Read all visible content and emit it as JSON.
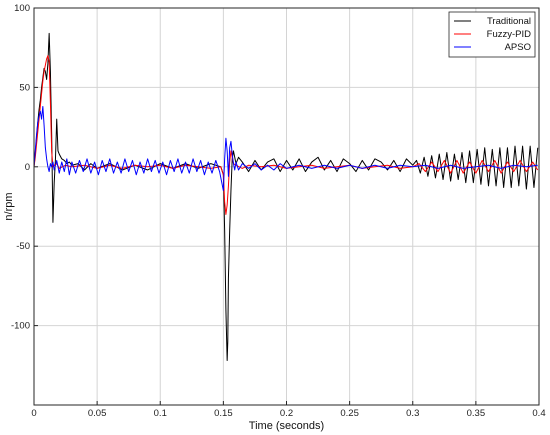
{
  "chart_data": {
    "type": "line",
    "title": "",
    "xlabel": "Time (seconds)",
    "ylabel": "n/rpm",
    "xlim": [
      0,
      0.4
    ],
    "ylim": [
      -150,
      100
    ],
    "xticks": [
      0,
      0.05,
      0.1,
      0.15,
      0.2,
      0.25,
      0.3,
      0.35,
      0.4
    ],
    "xtick_labels": [
      "0",
      "0.05",
      "0.1",
      "0.15",
      "0.2",
      "0.25",
      "0.3",
      "0.35",
      "0.4"
    ],
    "yticks": [
      -150,
      -100,
      -50,
      0,
      50,
      100
    ],
    "ytick_labels": [
      "",
      "-100",
      "-50",
      "0",
      "50",
      "100"
    ],
    "grid": true,
    "legend_position": "top-right",
    "series": [
      {
        "name": "Traditional",
        "color": "#000000",
        "x": [
          0,
          0.001,
          0.002,
          0.003,
          0.004,
          0.005,
          0.006,
          0.007,
          0.008,
          0.009,
          0.01,
          0.011,
          0.012,
          0.013,
          0.014,
          0.015,
          0.016,
          0.017,
          0.018,
          0.019,
          0.02,
          0.022,
          0.024,
          0.026,
          0.028,
          0.03,
          0.035,
          0.04,
          0.045,
          0.05,
          0.06,
          0.07,
          0.08,
          0.09,
          0.1,
          0.11,
          0.12,
          0.13,
          0.14,
          0.148,
          0.15,
          0.151,
          0.152,
          0.153,
          0.1535,
          0.154,
          0.155,
          0.156,
          0.157,
          0.158,
          0.16,
          0.162,
          0.165,
          0.17,
          0.175,
          0.18,
          0.185,
          0.19,
          0.195,
          0.2,
          0.205,
          0.21,
          0.215,
          0.22,
          0.225,
          0.23,
          0.235,
          0.24,
          0.245,
          0.25,
          0.255,
          0.26,
          0.265,
          0.27,
          0.275,
          0.28,
          0.285,
          0.29,
          0.295,
          0.3,
          0.303,
          0.306,
          0.309,
          0.312,
          0.315,
          0.318,
          0.321,
          0.324,
          0.327,
          0.33,
          0.333,
          0.336,
          0.339,
          0.342,
          0.345,
          0.348,
          0.351,
          0.354,
          0.357,
          0.36,
          0.363,
          0.366,
          0.369,
          0.372,
          0.375,
          0.378,
          0.381,
          0.384,
          0.387,
          0.39,
          0.393,
          0.396,
          0.399
        ],
        "y": [
          0,
          8,
          18,
          28,
          36,
          42,
          50,
          56,
          62,
          60,
          55,
          65,
          84,
          60,
          20,
          -35,
          -10,
          5,
          30,
          10,
          8,
          5,
          4,
          2,
          3,
          1,
          2,
          -2,
          2,
          -1,
          2,
          -2,
          1,
          -2,
          2,
          -1,
          2,
          -1,
          2,
          0,
          -5,
          -40,
          -90,
          -122,
          -110,
          -70,
          -40,
          -15,
          5,
          10,
          2,
          6,
          3,
          -3,
          4,
          -2,
          3,
          5,
          -3,
          4,
          -2,
          5,
          -3,
          3,
          6,
          -2,
          4,
          -3,
          5,
          2,
          -3,
          4,
          -2,
          5,
          3,
          -2,
          4,
          -3,
          5,
          1,
          4,
          -4,
          6,
          -6,
          7,
          -7,
          8,
          -8,
          9,
          -9,
          8,
          -8,
          9,
          -10,
          10,
          -10,
          11,
          -11,
          12,
          -12,
          11,
          -12,
          12,
          -13,
          12,
          -13,
          13,
          -12,
          13,
          -14,
          13,
          -13,
          12
        ]
      },
      {
        "name": "Fuzzy-PID",
        "color": "#ff0000",
        "x": [
          0,
          0.001,
          0.002,
          0.003,
          0.004,
          0.005,
          0.006,
          0.007,
          0.008,
          0.009,
          0.01,
          0.011,
          0.012,
          0.013,
          0.014,
          0.015,
          0.016,
          0.018,
          0.02,
          0.025,
          0.03,
          0.04,
          0.05,
          0.06,
          0.07,
          0.08,
          0.09,
          0.1,
          0.11,
          0.12,
          0.13,
          0.14,
          0.148,
          0.15,
          0.151,
          0.152,
          0.153,
          0.154,
          0.155,
          0.156,
          0.157,
          0.158,
          0.16,
          0.165,
          0.17,
          0.18,
          0.19,
          0.2,
          0.21,
          0.22,
          0.23,
          0.24,
          0.25,
          0.26,
          0.27,
          0.28,
          0.29,
          0.3,
          0.305,
          0.31,
          0.315,
          0.32,
          0.325,
          0.33,
          0.335,
          0.34,
          0.345,
          0.35,
          0.355,
          0.36,
          0.365,
          0.37,
          0.375,
          0.38,
          0.385,
          0.39,
          0.395,
          0.399
        ],
        "y": [
          0,
          6,
          14,
          22,
          30,
          38,
          46,
          54,
          60,
          64,
          68,
          70,
          66,
          40,
          10,
          0,
          1,
          2,
          -1,
          1,
          0,
          1,
          -1,
          1,
          -1,
          1,
          0,
          1,
          -1,
          1,
          0,
          -1,
          0,
          -5,
          -22,
          -30,
          -24,
          -12,
          3,
          10,
          6,
          2,
          1,
          -1,
          1,
          0,
          1,
          -1,
          0,
          1,
          -1,
          0,
          1,
          -1,
          0,
          1,
          -1,
          0,
          2,
          -3,
          3,
          -3,
          4,
          -4,
          4,
          -4,
          3,
          -4,
          4,
          -3,
          4,
          -4,
          3,
          -3,
          4,
          -3,
          3,
          -2
        ]
      },
      {
        "name": "APSO",
        "color": "#0000ff",
        "x": [
          0,
          0.001,
          0.002,
          0.003,
          0.004,
          0.005,
          0.006,
          0.007,
          0.008,
          0.009,
          0.01,
          0.011,
          0.012,
          0.013,
          0.014,
          0.015,
          0.016,
          0.018,
          0.02,
          0.022,
          0.024,
          0.026,
          0.028,
          0.03,
          0.033,
          0.036,
          0.039,
          0.042,
          0.045,
          0.048,
          0.051,
          0.054,
          0.057,
          0.06,
          0.063,
          0.066,
          0.069,
          0.072,
          0.075,
          0.078,
          0.081,
          0.084,
          0.087,
          0.09,
          0.093,
          0.096,
          0.099,
          0.102,
          0.105,
          0.108,
          0.111,
          0.114,
          0.117,
          0.12,
          0.123,
          0.126,
          0.129,
          0.132,
          0.135,
          0.138,
          0.141,
          0.144,
          0.147,
          0.15,
          0.151,
          0.152,
          0.153,
          0.154,
          0.155,
          0.156,
          0.157,
          0.158,
          0.159,
          0.16,
          0.162,
          0.165,
          0.17,
          0.175,
          0.18,
          0.185,
          0.19,
          0.195,
          0.2,
          0.21,
          0.22,
          0.23,
          0.24,
          0.25,
          0.26,
          0.27,
          0.28,
          0.29,
          0.3,
          0.31,
          0.32,
          0.33,
          0.34,
          0.35,
          0.36,
          0.37,
          0.38,
          0.39,
          0.399
        ],
        "y": [
          0,
          10,
          20,
          28,
          32,
          35,
          30,
          38,
          26,
          12,
          5,
          0,
          -3,
          2,
          0,
          3,
          -2,
          4,
          -4,
          3,
          -3,
          5,
          -5,
          3,
          -4,
          4,
          -3,
          5,
          -4,
          3,
          -5,
          4,
          -3,
          5,
          -4,
          3,
          -4,
          5,
          -3,
          4,
          -5,
          3,
          -4,
          5,
          -3,
          4,
          -4,
          3,
          -5,
          4,
          -3,
          5,
          -4,
          3,
          -4,
          5,
          -3,
          4,
          -5,
          3,
          -4,
          4,
          -3,
          -15,
          5,
          18,
          10,
          -6,
          12,
          16,
          8,
          2,
          -2,
          3,
          -2,
          2,
          -1,
          2,
          -2,
          1,
          -2,
          2,
          -1,
          1,
          -1,
          1,
          -1,
          1,
          -1,
          1,
          -1,
          1,
          0,
          1,
          -1,
          1,
          -1,
          0,
          1,
          -1,
          1,
          0,
          1
        ]
      }
    ]
  }
}
